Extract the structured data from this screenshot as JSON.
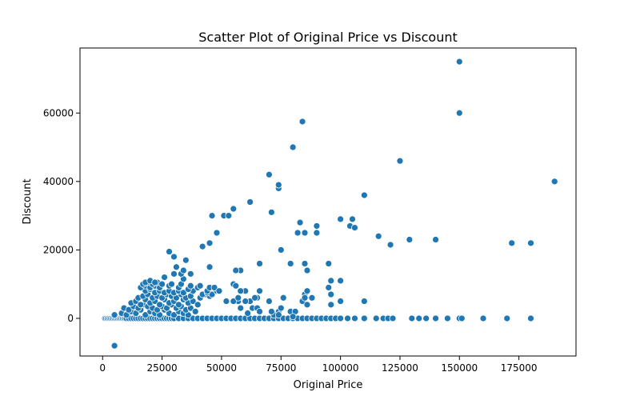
{
  "chart_data": {
    "type": "scatter",
    "title": "Scatter Plot of Original Price vs Discount",
    "xlabel": "Original Price",
    "ylabel": "Discount",
    "xlim": [
      -9500,
      199000
    ],
    "ylim": [
      -11000,
      79000
    ],
    "x_ticks": [
      0,
      25000,
      50000,
      75000,
      100000,
      125000,
      150000,
      175000
    ],
    "x_tick_labels": [
      "0",
      "25000",
      "50000",
      "75000",
      "100000",
      "125000",
      "150000",
      "175000"
    ],
    "y_ticks": [
      0,
      20000,
      40000,
      60000
    ],
    "y_tick_labels": [
      "0",
      "20000",
      "40000",
      "60000"
    ],
    "grid": false,
    "legend": "none",
    "marker_color": "#1f77b4",
    "series": [
      {
        "x": [
          1000,
          1500,
          2000,
          2500,
          3000,
          3500,
          4000,
          4500,
          5000,
          5500,
          6000,
          6500,
          7000,
          7500,
          8000,
          8500,
          9000,
          9500,
          10000,
          11000,
          12000,
          13000,
          14000,
          15000,
          16000,
          17000,
          18000,
          19000,
          20000,
          21000,
          22000,
          23000,
          24000,
          25000,
          26000,
          27000,
          28000,
          29000,
          30000,
          32000,
          34000,
          36000,
          38000,
          40000,
          42000,
          44000,
          46000,
          48000,
          50000,
          52000,
          54000,
          56000,
          58000,
          60000,
          62000,
          64000,
          66000,
          68000,
          70000,
          72000,
          74000,
          76000,
          78000,
          80000,
          82000,
          84000,
          86000,
          88000,
          90000,
          92000,
          94000,
          96000,
          98000,
          100000,
          103000,
          106000,
          110000,
          115000,
          118000,
          120000,
          122000,
          130000,
          133000,
          136000,
          140000,
          145000,
          150000,
          151000,
          160000,
          170000,
          180000,
          5000,
          8000,
          10000,
          12000,
          14000,
          16000,
          18000,
          20000,
          22000,
          24000,
          26000,
          28000,
          30000,
          32000,
          34000,
          36000,
          9000,
          11000,
          13000,
          15000,
          17000,
          19000,
          21000,
          23000,
          25000,
          27000,
          29000,
          31000,
          33000,
          35000,
          37000,
          39000,
          12000,
          14000,
          16000,
          18000,
          20000,
          22000,
          24000,
          26000,
          28000,
          30000,
          32000,
          34000,
          36000,
          38000,
          40000,
          15000,
          17000,
          19000,
          21000,
          23000,
          25000,
          27000,
          29000,
          31000,
          33000,
          35000,
          37000,
          41000,
          43000,
          45000,
          18000,
          20000,
          22000,
          24000,
          26000,
          28000,
          30000,
          32000,
          34000,
          38000,
          42000,
          44000,
          46000,
          16000,
          18000,
          20000,
          22000,
          24000,
          28000,
          32000,
          36000,
          40000,
          44000,
          48000,
          17000,
          19000,
          21000,
          23000,
          25000,
          29000,
          33000,
          37000,
          41000,
          45000,
          47000,
          18000,
          20000,
          22000,
          26000,
          30000,
          34000,
          5000,
          28000,
          30000,
          31000,
          33000,
          35000,
          37000,
          34000,
          42000,
          45000,
          46000,
          48000,
          51000,
          53000,
          55000,
          57000,
          58000,
          60000,
          62000,
          63000,
          65000,
          45000,
          49000,
          52000,
          55000,
          56000,
          62000,
          66000,
          70000,
          71000,
          74000,
          74000,
          75000,
          79000,
          80000,
          82000,
          83000,
          84000,
          85000,
          85000,
          86000,
          90000,
          90000,
          95000,
          96000,
          100000,
          100000,
          104000,
          105000,
          106000,
          110000,
          116000,
          121000,
          125000,
          129000,
          140000,
          150000,
          150000,
          172000,
          180000,
          190000,
          79000,
          84000,
          85000,
          86000,
          88000,
          95000,
          96000,
          100000,
          110000,
          55000,
          56000,
          57000,
          58000,
          60000,
          64000,
          65000,
          66000,
          70000,
          72000,
          74000,
          75000,
          76000,
          81000,
          85000,
          86000,
          58000,
          61000,
          66000,
          71000,
          74000,
          80000,
          96000
        ],
        "y": [
          0,
          0,
          0,
          0,
          0,
          0,
          0,
          0,
          0,
          0,
          0,
          0,
          0,
          0,
          0,
          0,
          0,
          0,
          0,
          0,
          0,
          0,
          0,
          0,
          0,
          0,
          0,
          0,
          0,
          0,
          0,
          0,
          0,
          0,
          0,
          0,
          0,
          0,
          0,
          0,
          0,
          0,
          0,
          0,
          0,
          0,
          0,
          0,
          0,
          0,
          0,
          0,
          0,
          0,
          0,
          0,
          0,
          0,
          0,
          0,
          0,
          0,
          0,
          0,
          0,
          0,
          0,
          0,
          0,
          0,
          0,
          0,
          0,
          0,
          0,
          0,
          0,
          0,
          0,
          0,
          0,
          0,
          0,
          0,
          0,
          0,
          0,
          0,
          0,
          0,
          0,
          1000,
          1500,
          1000,
          2000,
          1500,
          2500,
          1000,
          2000,
          1500,
          1000,
          2500,
          1500,
          1000,
          2000,
          1500,
          1000,
          3000,
          2500,
          3500,
          3000,
          4000,
          3500,
          3000,
          2500,
          3500,
          3000,
          4000,
          3000,
          3500,
          2500,
          3000,
          2000,
          4500,
          5000,
          4000,
          5500,
          4500,
          5000,
          4000,
          5500,
          4500,
          5000,
          4000,
          5500,
          4500,
          5000,
          4000,
          6000,
          6500,
          7000,
          6000,
          6500,
          6000,
          7000,
          6500,
          6000,
          7000,
          6000,
          6500,
          6000,
          7000,
          6500,
          8000,
          8500,
          7500,
          8000,
          7500,
          8000,
          7500,
          8000,
          7500,
          8000,
          7000,
          7500,
          7000,
          9000,
          9500,
          9000,
          9500,
          9000,
          9500,
          9000,
          8500,
          9000,
          8000,
          8000,
          10000,
          10500,
          10000,
          10500,
          10000,
          10000,
          10000,
          9500,
          9500,
          9000,
          9000,
          10500,
          11000,
          10500,
          12000,
          13000,
          11500,
          -8000,
          19500,
          18000,
          15000,
          13000,
          17000,
          13000,
          14000,
          21000,
          22000,
          30000,
          25000,
          30000,
          30000,
          32000,
          5000,
          14000,
          8000,
          34000,
          3000,
          6000,
          15000,
          8000,
          5000,
          10000,
          14000,
          5000,
          16000,
          42000,
          31000,
          38000,
          39000,
          20000,
          16000,
          50000,
          25000,
          28000,
          57500,
          16000,
          25000,
          14000,
          27000,
          25000,
          16000,
          11000,
          11000,
          29000,
          27000,
          29000,
          26500,
          36000,
          24000,
          21500,
          46000,
          23000,
          23000,
          75000,
          60000,
          22000,
          22000,
          40000,
          2000,
          5000,
          7000,
          8000,
          6000,
          9000,
          7000,
          5000,
          5000,
          5000,
          9500,
          6000,
          8000,
          5000,
          6000,
          3000,
          2000,
          5000,
          1000,
          2000,
          3000,
          6000,
          2000,
          6000,
          4000,
          3000,
          1500,
          8000,
          2000,
          1000,
          500,
          4000
        ]
      }
    ]
  }
}
